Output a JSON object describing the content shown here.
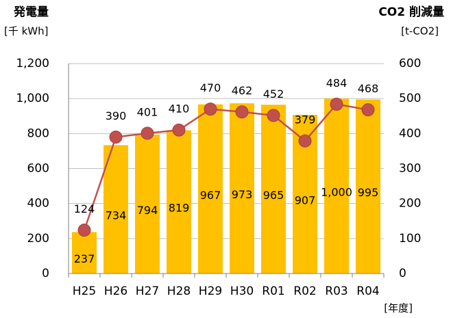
{
  "chart_data": {
    "type": "bar",
    "y_label": "発電量",
    "y_unit": "[千 kWh]",
    "y2_label": "CO2 削減量",
    "y2_unit": "[t-CO2]",
    "x_unit": "[年度]",
    "categories": [
      "H25",
      "H26",
      "H27",
      "H28",
      "H29",
      "H30",
      "R01",
      "R02",
      "R03",
      "R04"
    ],
    "series": [
      {
        "type": "bar",
        "color": "#ffc000",
        "values": [
          237,
          734,
          794,
          819,
          967,
          973,
          965,
          907,
          1000,
          995
        ],
        "value_labels": [
          "237",
          "734",
          "794",
          "819",
          "967",
          "973",
          "965",
          "907",
          "1,000",
          "995"
        ]
      },
      {
        "type": "line",
        "axis": "y2",
        "color": "#c0504d",
        "values": [
          124,
          390,
          401,
          410,
          470,
          462,
          452,
          379,
          484,
          468
        ]
      }
    ],
    "ylim": [
      0,
      1200
    ],
    "yticks": [
      0,
      200,
      400,
      600,
      800,
      {
        "value": 1000,
        "label": "1,000"
      },
      {
        "value": 1200,
        "label": "1,200"
      }
    ],
    "y2lim": [
      0,
      600
    ],
    "y2ticks": [
      0,
      100,
      200,
      300,
      400,
      500,
      600
    ],
    "grid": true
  }
}
